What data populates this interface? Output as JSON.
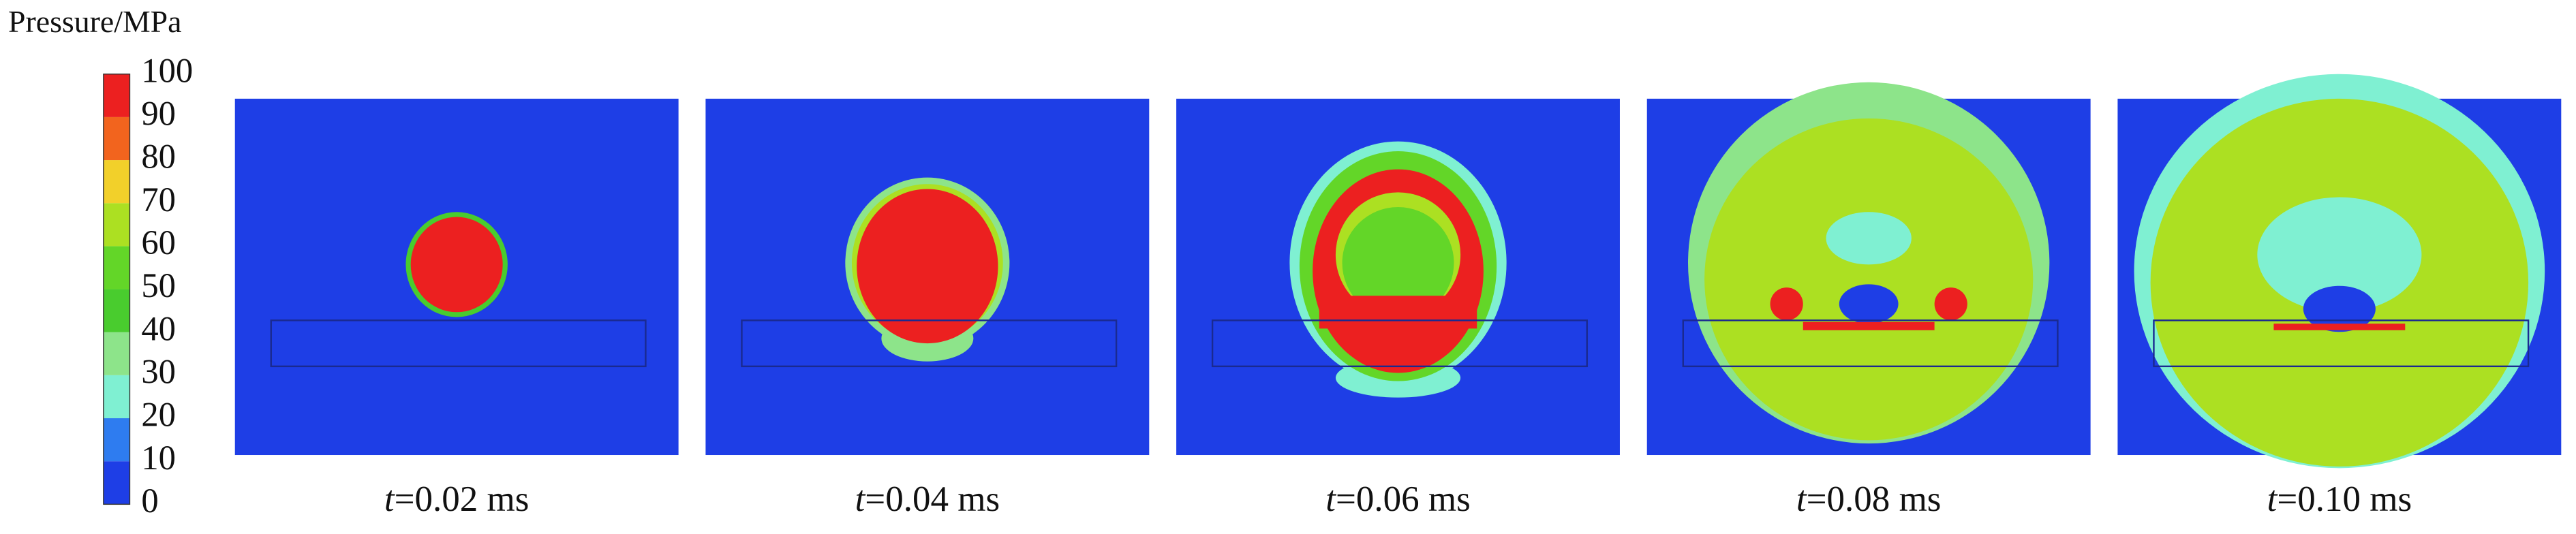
{
  "colorbar": {
    "title": "Pressure/MPa",
    "ticks": [
      0,
      10,
      20,
      30,
      40,
      50,
      60,
      70,
      80,
      90,
      100
    ],
    "colors": [
      "#1e3ee6",
      "#2e7cf0",
      "#7ff0d2",
      "#8de48a",
      "#49cc2e",
      "#63d628",
      "#ace022",
      "#f2d02a",
      "#f2641e",
      "#ec2020"
    ]
  },
  "panels": [
    {
      "variable": "t",
      "label": "=0.02 ms"
    },
    {
      "variable": "t",
      "label": "=0.04 ms"
    },
    {
      "variable": "t",
      "label": "=0.06 ms"
    },
    {
      "variable": "t",
      "label": "=0.08 ms"
    },
    {
      "variable": "t",
      "label": "=0.10 ms"
    }
  ]
}
